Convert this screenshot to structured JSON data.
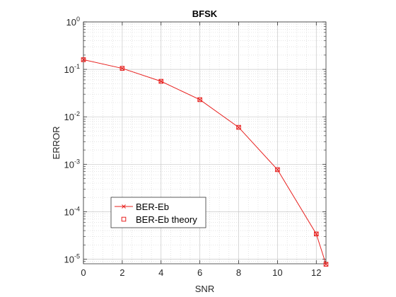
{
  "chart_data": {
    "type": "line",
    "title": "BFSK",
    "xlabel": "SNR",
    "ylabel": "ERROR",
    "xlim": [
      0,
      12.5
    ],
    "ylim": [
      8e-06,
      1
    ],
    "yscale": "log",
    "grid": "on (major and minor)",
    "x_ticks": [
      {
        "value": 0,
        "label": "0"
      },
      {
        "value": 2,
        "label": "2"
      },
      {
        "value": 4,
        "label": "4"
      },
      {
        "value": 6,
        "label": "6"
      },
      {
        "value": 8,
        "label": "8"
      },
      {
        "value": 10,
        "label": "10"
      },
      {
        "value": 12,
        "label": "12"
      }
    ],
    "y_ticks": [
      {
        "value": 1,
        "base": "10",
        "exp": "0"
      },
      {
        "value": 0.1,
        "base": "10",
        "exp": "-1"
      },
      {
        "value": 0.01,
        "base": "10",
        "exp": "-2"
      },
      {
        "value": 0.001,
        "base": "10",
        "exp": "-3"
      },
      {
        "value": 0.0001,
        "base": "10",
        "exp": "-4"
      },
      {
        "value": 1e-05,
        "base": "10",
        "exp": "-5"
      }
    ],
    "legend_position": "bottom-left",
    "series": [
      {
        "name": "BER-Eb",
        "color": "#e8201e",
        "marker": "x",
        "line": "solid",
        "x": [
          0,
          2,
          4,
          6,
          8,
          10,
          12,
          12.5
        ],
        "y": [
          0.16,
          0.105,
          0.056,
          0.023,
          0.006,
          0.00077,
          3.4e-05,
          7.8e-06
        ]
      },
      {
        "name": "BER-Eb theory",
        "color": "#e8201e",
        "marker": "square",
        "line": "none",
        "x": [
          0,
          2,
          4,
          6,
          8,
          10,
          12,
          12.5
        ],
        "y": [
          0.16,
          0.105,
          0.056,
          0.023,
          0.006,
          0.00077,
          3.4e-05,
          7.8e-06
        ]
      }
    ]
  }
}
